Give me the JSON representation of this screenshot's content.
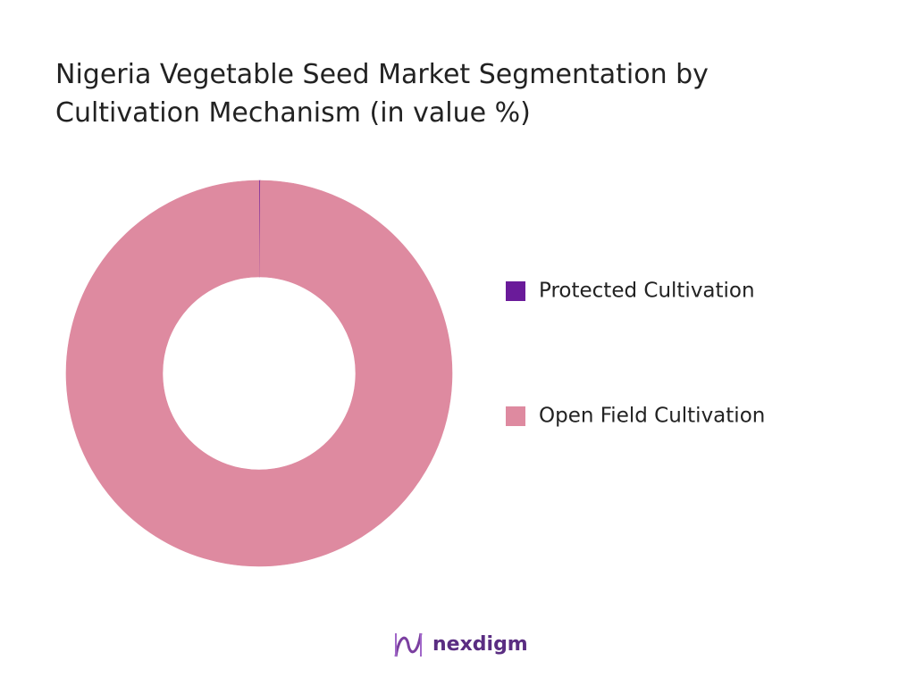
{
  "chart_data": {
    "type": "donut",
    "title": "Nigeria Vegetable Seed Market Segmentation by Cultivation Mechanism (in value %)",
    "categories": [
      "Protected Cultivation",
      "Open Field Cultivation"
    ],
    "values": [
      0.1,
      99.9
    ],
    "colors": [
      "#6a1b9a",
      "#de8aa0"
    ]
  },
  "brand": "nexdigm"
}
